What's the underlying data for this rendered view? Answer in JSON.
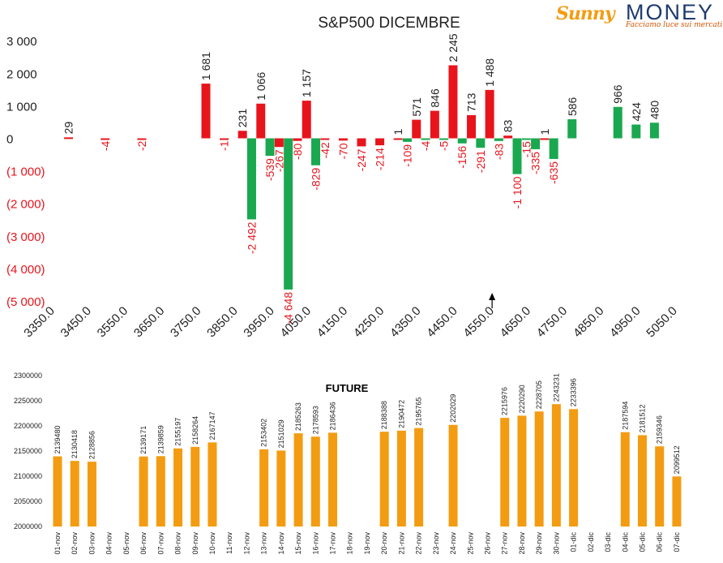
{
  "logo": {
    "brand_part1": "Sunny",
    "brand_part2": "MONEY",
    "tagline": "Facciamo luce sui mercati"
  },
  "chart_data": [
    {
      "type": "bar",
      "title": "S&P500 DICEMBRE",
      "ylim": [
        -5000,
        3000
      ],
      "yticks": [
        3000,
        2000,
        1000,
        0,
        -1000,
        -2000,
        -3000,
        -4000,
        -5000
      ],
      "ytick_labels": [
        "3 000",
        "2 000",
        "1 000",
        "0",
        "(1 000)",
        "(2 000)",
        "(3 000)",
        "(4 000)",
        "(5 000)"
      ],
      "xticks": [
        3350,
        3450,
        3550,
        3650,
        3750,
        3850,
        3950,
        4050,
        4150,
        4250,
        4350,
        4450,
        4550,
        4650,
        4750,
        4850,
        4950,
        5050
      ],
      "xtick_labels": [
        "3350.0",
        "3450.0",
        "3550.0",
        "3650.0",
        "3750.0",
        "3850.0",
        "3950.0",
        "4050.0",
        "4150.0",
        "4250.0",
        "4350.0",
        "4450.0",
        "4550.0",
        "4650.0",
        "4750.0",
        "4850.0",
        "4950.0",
        "5050.0"
      ],
      "xlim": [
        3350,
        5050
      ],
      "colors": {
        "call": "#e8141c",
        "put": "#19a84f",
        "negative_label": "#e8141c",
        "positive_label": "#222222"
      },
      "current_price_marker": 4550,
      "series": [
        {
          "name": "call",
          "points": [
            {
              "x": 3400,
              "y": 29,
              "label": "29"
            },
            {
              "x": 3500,
              "y": -4,
              "label": "-4"
            },
            {
              "x": 3600,
              "y": -2,
              "label": "-2"
            },
            {
              "x": 3775,
              "y": 1681,
              "label": "1 681"
            },
            {
              "x": 3825,
              "y": -1,
              "label": "-1"
            },
            {
              "x": 3875,
              "y": 231,
              "label": "231"
            },
            {
              "x": 3925,
              "y": 1066,
              "label": "1 066"
            },
            {
              "x": 3975,
              "y": -267,
              "label": "-267"
            },
            {
              "x": 4025,
              "y": -80,
              "label": "-80"
            },
            {
              "x": 4050,
              "y": 1157,
              "label": "1 157"
            },
            {
              "x": 4100,
              "y": -42,
              "label": "-42"
            },
            {
              "x": 4150,
              "y": -70,
              "label": "-70"
            },
            {
              "x": 4200,
              "y": -247,
              "label": "-247"
            },
            {
              "x": 4250,
              "y": -214,
              "label": "-214"
            },
            {
              "x": 4300,
              "y": 1,
              "label": "1"
            },
            {
              "x": 4350,
              "y": 571,
              "label": "571"
            },
            {
              "x": 4400,
              "y": 846,
              "label": "846"
            },
            {
              "x": 4450,
              "y": 2245,
              "label": "2 245"
            },
            {
              "x": 4500,
              "y": 713,
              "label": "713"
            },
            {
              "x": 4550,
              "y": 1488,
              "label": "1 488"
            },
            {
              "x": 4600,
              "y": 83,
              "label": "83"
            },
            {
              "x": 4700,
              "y": 1,
              "label": "1"
            }
          ]
        },
        {
          "name": "put",
          "points": [
            {
              "x": 3900,
              "y": -2492,
              "label": "-2 492"
            },
            {
              "x": 3950,
              "y": -539,
              "label": "-539"
            },
            {
              "x": 4000,
              "y": -4648,
              "label": "-4 648"
            },
            {
              "x": 4075,
              "y": -829,
              "label": "-829"
            },
            {
              "x": 4325,
              "y": -109,
              "label": "-109"
            },
            {
              "x": 4375,
              "y": -4,
              "label": "-4"
            },
            {
              "x": 4425,
              "y": -5,
              "label": "-5"
            },
            {
              "x": 4475,
              "y": -156,
              "label": "-156"
            },
            {
              "x": 4525,
              "y": -291,
              "label": "-291"
            },
            {
              "x": 4575,
              "y": -83,
              "label": "-83"
            },
            {
              "x": 4625,
              "y": -1100,
              "label": "-1 100"
            },
            {
              "x": 4650,
              "y": -15,
              "label": "-15"
            },
            {
              "x": 4675,
              "y": -335,
              "label": "-335"
            },
            {
              "x": 4725,
              "y": -635,
              "label": "-635"
            },
            {
              "x": 4775,
              "y": 586,
              "label": "586"
            },
            {
              "x": 4900,
              "y": 966,
              "label": "966"
            },
            {
              "x": 4950,
              "y": 424,
              "label": "424"
            },
            {
              "x": 5000,
              "y": 480,
              "label": "480"
            }
          ]
        }
      ]
    },
    {
      "type": "bar",
      "title": "FUTURE",
      "ylim": [
        2000000,
        2300000
      ],
      "yticks": [
        2000000,
        2050000,
        2100000,
        2150000,
        2200000,
        2250000,
        2300000
      ],
      "ytick_labels": [
        "2000000",
        "2050000",
        "2100000",
        "2150000",
        "2200000",
        "2250000",
        "2300000"
      ],
      "bar_color": "#f39c12",
      "categories": [
        "01-nov",
        "02-nov",
        "03-nov",
        "04-nov",
        "05-nov",
        "06-nov",
        "07-nov",
        "08-nov",
        "09-nov",
        "10-nov",
        "11-nov",
        "12-nov",
        "13-nov",
        "14-nov",
        "15-nov",
        "16-nov",
        "17-nov",
        "18-nov",
        "19-nov",
        "20-nov",
        "21-nov",
        "22-nov",
        "23-nov",
        "24-nov",
        "25-nov",
        "26-nov",
        "27-nov",
        "28-nov",
        "29-nov",
        "30-nov",
        "01-dic",
        "02-dic",
        "03-dic",
        "04-dic",
        "05-dic",
        "06-dic",
        "07-dic"
      ],
      "values": [
        2139480,
        2130418,
        2128856,
        null,
        null,
        2139171,
        2139859,
        2155197,
        2158264,
        2167147,
        null,
        null,
        2153402,
        2151029,
        2185263,
        2178593,
        2186436,
        null,
        null,
        2188388,
        2190472,
        2195765,
        null,
        2202029,
        null,
        null,
        2215976,
        2220290,
        2228705,
        2243231,
        2233396,
        null,
        null,
        2187594,
        2181512,
        2159346,
        2099512
      ],
      "value_labels": [
        "2139480",
        "2130418",
        "2128856",
        "",
        "",
        "2139171",
        "2139859",
        "2155197",
        "2158264",
        "2167147",
        "",
        "",
        "2153402",
        "2151029",
        "2185263",
        "2178593",
        "2186436",
        "",
        "",
        "2188388",
        "2190472",
        "2195765",
        "",
        "2202029",
        "",
        "",
        "2215976",
        "2220290",
        "2228705",
        "2243231",
        "2233396",
        "",
        "",
        "2187594",
        "2181512",
        "2159346",
        "2099512"
      ]
    }
  ]
}
